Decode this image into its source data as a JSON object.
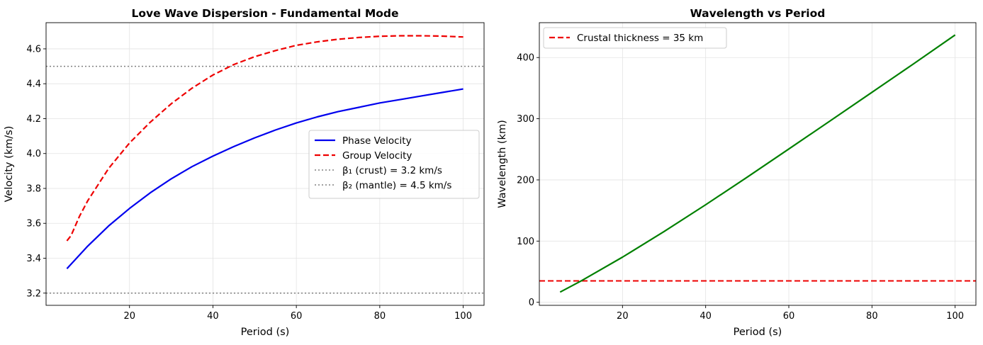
{
  "chart_data": [
    {
      "type": "line",
      "title": "Love Wave Dispersion - Fundamental Mode",
      "xlabel": "Period (s)",
      "ylabel": "Velocity (km/s)",
      "xlim": [
        0,
        105
      ],
      "ylim": [
        3.13,
        4.75
      ],
      "xticks": [
        20,
        40,
        60,
        80,
        100
      ],
      "yticks": [
        3.2,
        3.4,
        3.6,
        3.8,
        4.0,
        4.2,
        4.4,
        4.6
      ],
      "ytick_labels": [
        "3.2",
        "3.4",
        "3.6",
        "3.8",
        "4.0",
        "4.2",
        "4.4",
        "4.6"
      ],
      "xtick_labels": [
        "20",
        "40",
        "60",
        "80",
        "100"
      ],
      "grid": true,
      "legend_position": "center-right",
      "series": [
        {
          "name": "Phase Velocity",
          "color": "#0000ee",
          "style": "solid",
          "x": [
            5,
            10,
            15,
            20,
            25,
            30,
            35,
            40,
            45,
            50,
            55,
            60,
            65,
            70,
            75,
            80,
            85,
            90,
            95,
            100
          ],
          "y": [
            3.34,
            3.47,
            3.585,
            3.685,
            3.775,
            3.855,
            3.925,
            3.985,
            4.04,
            4.09,
            4.135,
            4.175,
            4.21,
            4.24,
            4.265,
            4.29,
            4.31,
            4.33,
            4.35,
            4.37
          ]
        },
        {
          "name": "Group Velocity",
          "color": "#ee0000",
          "style": "dashed",
          "x": [
            5,
            6,
            8,
            10,
            15,
            20,
            25,
            30,
            35,
            40,
            45,
            50,
            55,
            60,
            65,
            70,
            75,
            80,
            85,
            90,
            95,
            100
          ],
          "y": [
            3.5,
            3.53,
            3.64,
            3.73,
            3.915,
            4.06,
            4.18,
            4.285,
            4.375,
            4.45,
            4.51,
            4.555,
            4.59,
            4.62,
            4.64,
            4.655,
            4.665,
            4.672,
            4.675,
            4.675,
            4.673,
            4.668
          ]
        }
      ],
      "reference_lines": [
        {
          "name": "β₁ (crust) = 3.2 km/s",
          "value": 3.2,
          "color": "#808080",
          "style": "dotted"
        },
        {
          "name": "β₂ (mantle) = 4.5 km/s",
          "value": 4.5,
          "color": "#808080",
          "style": "dotted"
        }
      ]
    },
    {
      "type": "line",
      "title": "Wavelength vs Period",
      "xlabel": "Period (s)",
      "ylabel": "Wavelength (km)",
      "xlim": [
        0,
        105
      ],
      "ylim": [
        -5,
        457
      ],
      "xticks": [
        20,
        40,
        60,
        80,
        100
      ],
      "yticks": [
        0,
        100,
        200,
        300,
        400
      ],
      "ytick_labels": [
        "0",
        "100",
        "200",
        "300",
        "400"
      ],
      "xtick_labels": [
        "20",
        "40",
        "60",
        "80",
        "100"
      ],
      "grid": true,
      "legend_position": "top-left",
      "series": [
        {
          "name": "Wavelength",
          "color": "#008000",
          "style": "solid",
          "x": [
            5,
            10,
            20,
            30,
            40,
            50,
            60,
            70,
            80,
            90,
            100
          ],
          "y": [
            16.7,
            34.7,
            73.7,
            115.7,
            159.4,
            204.5,
            250.5,
            296.8,
            343.2,
            389.7,
            437
          ]
        }
      ],
      "reference_lines": [
        {
          "name": "Crustal thickness = 35 km",
          "value": 35,
          "color": "#ee0000",
          "style": "dashed"
        }
      ]
    }
  ]
}
